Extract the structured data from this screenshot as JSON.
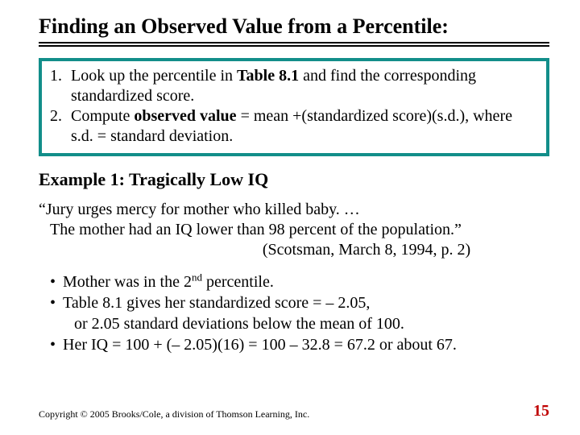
{
  "title": "Finding an Observed Value from a Percentile:",
  "box": {
    "border_color": "#128e8a",
    "items": [
      {
        "num": "1.",
        "text_parts": [
          "Look up the percentile in ",
          "Table 8.1",
          " and find the corresponding standardized score."
        ]
      },
      {
        "num": "2.",
        "text_parts": [
          "Compute ",
          "observed value",
          " = mean +(standardized score)(s.d.), where s.d. = standard deviation."
        ]
      }
    ]
  },
  "example_heading": "Example 1: Tragically Low IQ",
  "quote": {
    "line1": "“Jury urges mercy for mother who killed baby. …",
    "line2": "The mother had an IQ lower than 98 percent of the population.”",
    "citation": "(Scotsman, March 8, 1994, p. 2)"
  },
  "bullets": [
    {
      "lines": [
        "Mother was in the 2ⁿᵈ percentile."
      ],
      "has_sup": true,
      "sup_text": "nd",
      "pre_sup": "Mother was in the 2",
      "post_sup": " percentile."
    },
    {
      "lines": [
        "Table 8.1 gives her standardized score = – 2.05,",
        "or 2.05 standard deviations below the mean of 100."
      ]
    },
    {
      "lines": [
        "Her IQ = 100 + (– 2.05)(16) = 100 – 32.8 = 67.2 or about 67."
      ]
    }
  ],
  "copyright": "Copyright © 2005 Brooks/Cole, a division of Thomson Learning, Inc.",
  "page_number": "15",
  "colors": {
    "page_num": "#c00000",
    "rule": "#000000",
    "text": "#000000"
  }
}
